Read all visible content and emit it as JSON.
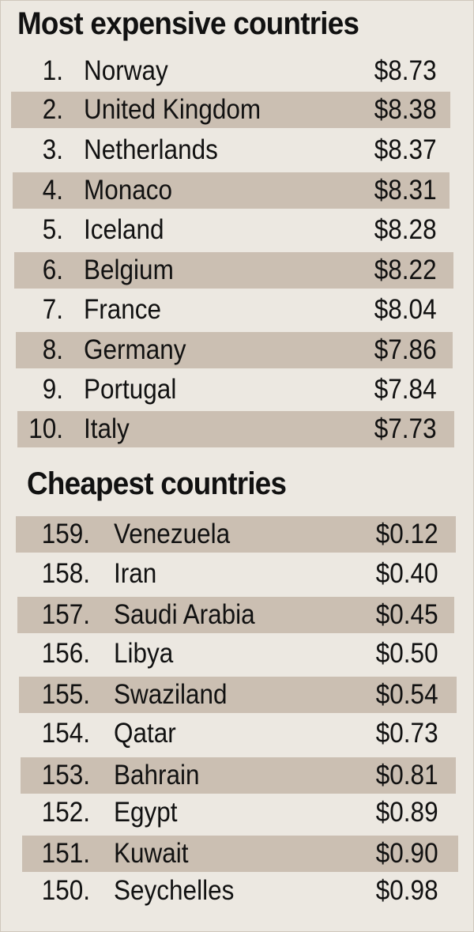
{
  "most_expensive": {
    "title": "Most expensive countries",
    "rows": [
      {
        "rank": "1.",
        "country": "Norway",
        "price": "$8.73"
      },
      {
        "rank": "2.",
        "country": "United Kingdom",
        "price": "$8.38"
      },
      {
        "rank": "3.",
        "country": "Netherlands",
        "price": "$8.37"
      },
      {
        "rank": "4.",
        "country": "Monaco",
        "price": "$8.31"
      },
      {
        "rank": "5.",
        "country": "Iceland",
        "price": "$8.28"
      },
      {
        "rank": "6.",
        "country": "Belgium",
        "price": "$8.22"
      },
      {
        "rank": "7.",
        "country": "France",
        "price": "$8.04"
      },
      {
        "rank": "8.",
        "country": "Germany",
        "price": "$7.86"
      },
      {
        "rank": "9.",
        "country": "Portugal",
        "price": "$7.84"
      },
      {
        "rank": "10.",
        "country": "Italy",
        "price": "$7.73"
      }
    ]
  },
  "cheapest": {
    "title": "Cheapest countries",
    "rows": [
      {
        "rank": "159.",
        "country": "Venezuela",
        "price": "$0.12"
      },
      {
        "rank": "158.",
        "country": "Iran",
        "price": "$0.40"
      },
      {
        "rank": "157.",
        "country": "Saudi Arabia",
        "price": "$0.45"
      },
      {
        "rank": "156.",
        "country": "Libya",
        "price": "$0.50"
      },
      {
        "rank": "155.",
        "country": "Swaziland",
        "price": "$0.54"
      },
      {
        "rank": "154.",
        "country": "Qatar",
        "price": "$0.73"
      },
      {
        "rank": "153.",
        "country": "Bahrain",
        "price": "$0.81"
      },
      {
        "rank": "152.",
        "country": "Egypt",
        "price": "$0.89"
      },
      {
        "rank": "151.",
        "country": "Kuwait",
        "price": "$0.90"
      },
      {
        "rank": "150.",
        "country": "Seychelles",
        "price": "$0.98"
      }
    ]
  },
  "colors": {
    "background": "#ece8e1",
    "row_shade": "#cbbfb2",
    "text": "#111111"
  }
}
